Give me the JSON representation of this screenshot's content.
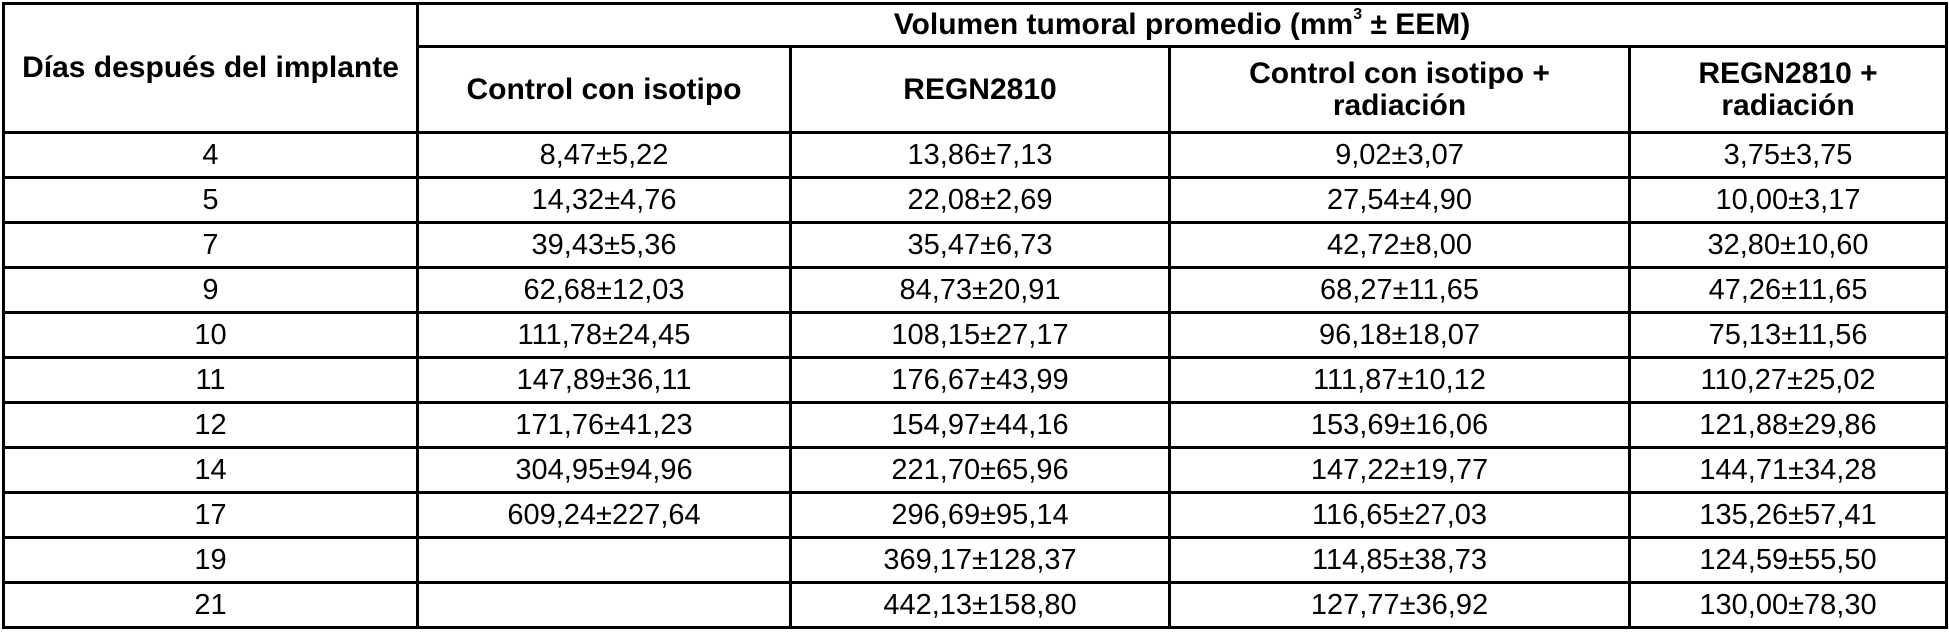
{
  "table": {
    "group_header": {
      "prefix": "Volumen tumoral promedio (mm",
      "superscript": "3",
      "suffix": " ± EEM)"
    },
    "columns": [
      "Días después del implante",
      "Control con isotipo",
      "REGN2810",
      "Control con isotipo + radiación",
      "REGN2810 + radiación"
    ],
    "rows": [
      [
        "4",
        "8,47±5,22",
        "13,86±7,13",
        "9,02±3,07",
        "3,75±3,75"
      ],
      [
        "5",
        "14,32±4,76",
        "22,08±2,69",
        "27,54±4,90",
        "10,00±3,17"
      ],
      [
        "7",
        "39,43±5,36",
        "35,47±6,73",
        "42,72±8,00",
        "32,80±10,60"
      ],
      [
        "9",
        "62,68±12,03",
        "84,73±20,91",
        "68,27±11,65",
        "47,26±11,65"
      ],
      [
        "10",
        "111,78±24,45",
        "108,15±27,17",
        "96,18±18,07",
        "75,13±11,56"
      ],
      [
        "11",
        "147,89±36,11",
        "176,67±43,99",
        "111,87±10,12",
        "110,27±25,02"
      ],
      [
        "12",
        "171,76±41,23",
        "154,97±44,16",
        "153,69±16,06",
        "121,88±29,86"
      ],
      [
        "14",
        "304,95±94,96",
        "221,70±65,96",
        "147,22±19,77",
        "144,71±34,28"
      ],
      [
        "17",
        "609,24±227,64",
        "296,69±95,14",
        "116,65±27,03",
        "135,26±57,41"
      ],
      [
        "19",
        "",
        "369,17±128,37",
        "114,85±38,73",
        "124,59±55,50"
      ],
      [
        "21",
        "",
        "442,13±158,80",
        "127,77±36,92",
        "130,00±78,30"
      ]
    ]
  }
}
